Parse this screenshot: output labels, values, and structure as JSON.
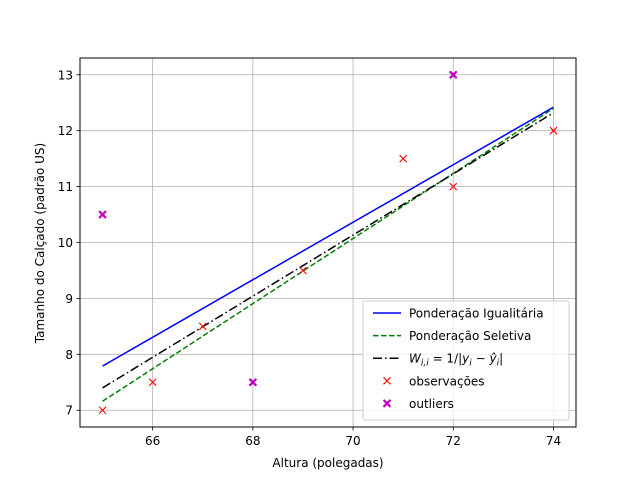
{
  "chart_data": {
    "type": "line",
    "title": "",
    "xlabel": "Altura (polegadas)",
    "ylabel": "Tamanho do Calçado (padrão US)",
    "xlim": [
      64.55,
      74.45
    ],
    "ylim": [
      6.7,
      13.3
    ],
    "xticks": [
      66,
      68,
      70,
      72,
      74
    ],
    "yticks": [
      7,
      8,
      9,
      10,
      11,
      12,
      13
    ],
    "grid": true,
    "legend_position": "lower-right",
    "series": [
      {
        "name": "Ponderação Igualitária",
        "kind": "line",
        "style": "solid",
        "color": "#0000ff",
        "x": [
          65,
          74
        ],
        "y": [
          7.79,
          12.42
        ]
      },
      {
        "name": "Ponderação Seletiva",
        "kind": "line",
        "style": "dashed",
        "color": "#008000",
        "x": [
          65,
          74
        ],
        "y": [
          7.16,
          12.4
        ]
      },
      {
        "name": "W_{i,i} = 1/|y_i − ŷ_i|",
        "kind": "line",
        "style": "dashdot",
        "color": "#000000",
        "x": [
          65,
          74
        ],
        "y": [
          7.4,
          12.32
        ]
      },
      {
        "name": "observações",
        "kind": "scatter",
        "marker": "x",
        "color": "#ff0000",
        "x": [
          65,
          66,
          67,
          69,
          71,
          72,
          74
        ],
        "y": [
          7.0,
          7.5,
          8.5,
          9.5,
          11.5,
          11.0,
          12.0
        ]
      },
      {
        "name": "outliers",
        "kind": "scatter",
        "marker": "X",
        "color": "#bf00bf",
        "x": [
          65,
          68,
          72
        ],
        "y": [
          10.5,
          7.5,
          13.0
        ]
      }
    ]
  }
}
